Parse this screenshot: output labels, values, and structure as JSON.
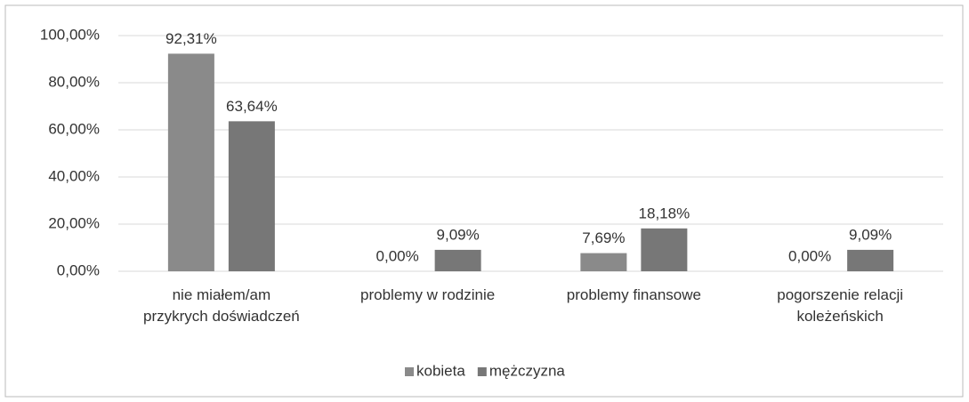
{
  "chart_data": {
    "type": "bar",
    "categories": [
      [
        "nie miałem/am",
        "przykrych doświadczeń"
      ],
      [
        "problemy w rodzinie"
      ],
      [
        "problemy finansowe"
      ],
      [
        "pogorszenie relacji",
        "koleżeńskich"
      ]
    ],
    "series": [
      {
        "name": "kobieta",
        "color": "#8a8a8a",
        "values": [
          92.31,
          0,
          7.69,
          0
        ],
        "value_labels": [
          "92,31%",
          "0,00%",
          "7,69%",
          "0,00%"
        ]
      },
      {
        "name": "mężczyzna",
        "color": "#777777",
        "values": [
          63.64,
          9.09,
          18.18,
          9.09
        ],
        "value_labels": [
          "63,64%",
          "9,09%",
          "18,18%",
          "9,09%"
        ]
      }
    ],
    "ylim": [
      0,
      100
    ],
    "yticks": [
      {
        "value": 0,
        "label": "0,00%"
      },
      {
        "value": 20,
        "label": "20,00%"
      },
      {
        "value": 40,
        "label": "40,00%"
      },
      {
        "value": 60,
        "label": "60,00%"
      },
      {
        "value": 80,
        "label": "80,00%"
      },
      {
        "value": 100,
        "label": "100,00%"
      }
    ],
    "grid": true,
    "legend": "bottom"
  }
}
